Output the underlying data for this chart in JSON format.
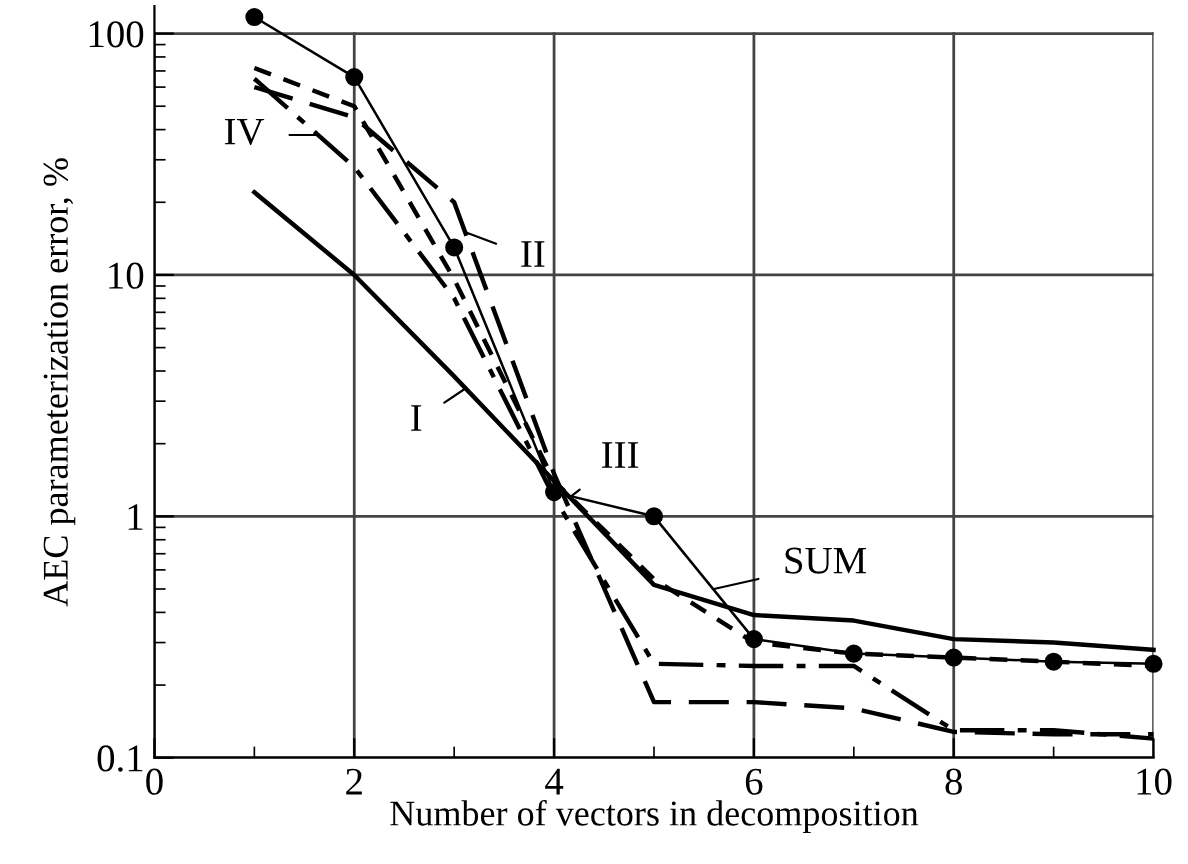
{
  "chart_data": {
    "type": "line",
    "xlabel": "Number of vectors in decomposition",
    "ylabel": "AEC parameterization error, %",
    "log": "y",
    "grid": true,
    "legend": false,
    "x": [
      1,
      2,
      3,
      4,
      5,
      6,
      7,
      8,
      9,
      10
    ],
    "xlim": [
      0,
      10
    ],
    "xticks": [
      0,
      2,
      4,
      6,
      8,
      10
    ],
    "ylim": [
      0.1,
      130
    ],
    "yticks": [
      {
        "value": 0.1,
        "label": "0.1"
      },
      1,
      10,
      100
    ],
    "series": [
      {
        "color": "#000000",
        "line_style": "solid",
        "marker": "circle",
        "values": [
          117,
          66,
          13,
          1.26,
          1.0,
          0.31,
          0.27,
          0.26,
          0.25,
          0.245
        ]
      },
      {
        "color": "#000000",
        "line_style": "solid",
        "marker": "none",
        "values": [
          22,
          10,
          3.8,
          1.4,
          0.52,
          0.39,
          0.37,
          0.31,
          0.3,
          0.28
        ]
      },
      {
        "color": "#000000",
        "line_style": "dashed",
        "marker": "none",
        "values": [
          60,
          45,
          20,
          1.5,
          0.17,
          0.17,
          0.16,
          0.128,
          0.125,
          0.125
        ]
      },
      {
        "color": "#000000",
        "line_style": "dotted",
        "marker": "none",
        "values": [
          72,
          50,
          9.6,
          1.4,
          0.55,
          0.3,
          0.27,
          0.26,
          0.25,
          0.24
        ]
      },
      {
        "color": "#000000",
        "line_style": "dashdot",
        "marker": "none",
        "values": [
          65,
          28,
          8,
          1.2,
          0.245,
          0.24,
          0.24,
          0.13,
          0.13,
          0.12
        ]
      }
    ],
    "annotations": [
      {
        "text": "IV",
        "x": 1.62,
        "y": 38
      },
      {
        "text": "II",
        "x": 3.12,
        "y": 15
      },
      {
        "text": "I",
        "x": 3.12,
        "y": 3.4
      },
      {
        "text": "III",
        "x": 4.16,
        "y": 1.2
      },
      {
        "text": "SUM",
        "x": 5.6,
        "y": 0.5
      }
    ]
  }
}
